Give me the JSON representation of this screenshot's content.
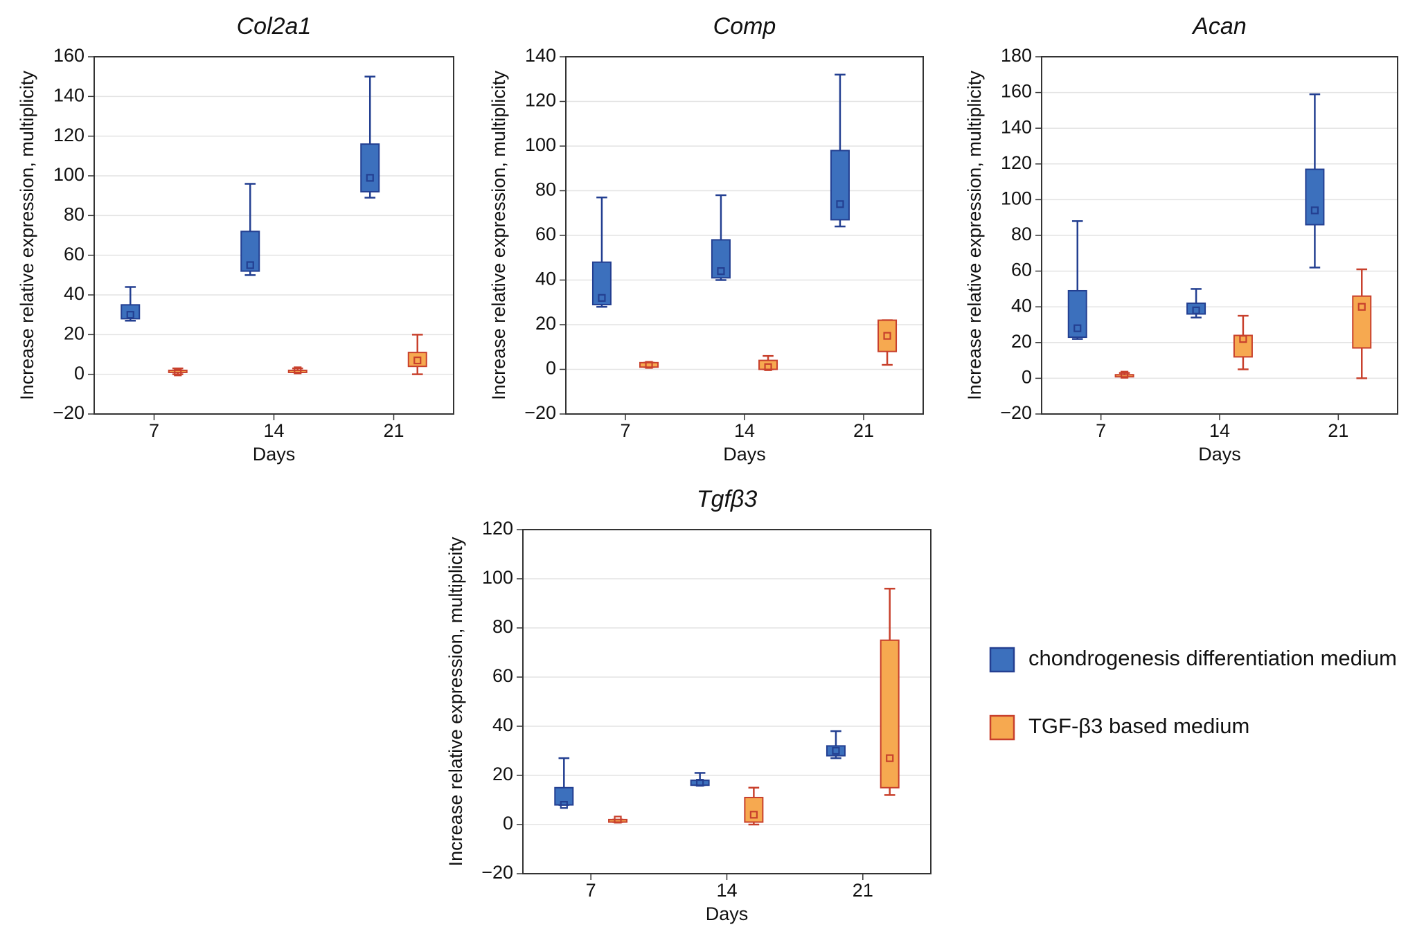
{
  "legend": [
    {
      "name": "chondrogenesis differentiation medium",
      "color": "#3c70bd",
      "edge": "#233f91"
    },
    {
      "name": "TGF-β3 based medium",
      "color": "#f6a950",
      "edge": "#c8402c"
    }
  ],
  "chart_data": [
    {
      "type": "box",
      "title": "Col2a1",
      "x_label": "Days",
      "y_label": "Increase relative expression, multiplicity",
      "categories": [
        "7",
        "14",
        "21"
      ],
      "ylim": [
        -20,
        160
      ],
      "yticks": [
        {
          "value": -20,
          "label": "−20"
        },
        0,
        20,
        40,
        60,
        80,
        100,
        120,
        140,
        160
      ],
      "grid": true,
      "series": [
        {
          "min": [
            27,
            50,
            89
          ],
          "q1": [
            28,
            52,
            92
          ],
          "median": [
            30,
            55,
            99
          ],
          "q3": [
            35,
            72,
            116
          ],
          "max": [
            44,
            96,
            150
          ]
        },
        {
          "min": [
            0,
            1,
            0
          ],
          "q1": [
            1,
            1,
            4
          ],
          "median": [
            1,
            2,
            7
          ],
          "q3": [
            2,
            2,
            11
          ],
          "max": [
            3,
            3,
            20
          ]
        }
      ]
    },
    {
      "type": "box",
      "title": "Comp",
      "x_label": "Days",
      "y_label": "Increase relative expression, multiplicity",
      "categories": [
        "7",
        "14",
        "21"
      ],
      "ylim": [
        -20,
        140
      ],
      "yticks": [
        {
          "value": -20,
          "label": "−20"
        },
        0,
        20,
        40,
        60,
        80,
        100,
        120,
        140
      ],
      "grid": true,
      "series": [
        {
          "min": [
            28,
            40,
            64
          ],
          "q1": [
            29,
            41,
            67
          ],
          "median": [
            32,
            44,
            74
          ],
          "q3": [
            48,
            58,
            98
          ],
          "max": [
            77,
            78,
            132
          ]
        },
        {
          "min": [
            1,
            0,
            2
          ],
          "q1": [
            1,
            0,
            8
          ],
          "median": [
            2,
            1,
            15
          ],
          "q3": [
            3,
            4,
            22
          ],
          "max": [
            3,
            6,
            22
          ]
        }
      ]
    },
    {
      "type": "box",
      "title": "Acan",
      "x_label": "Days",
      "y_label": "Increase relative expression, multiplicity",
      "categories": [
        "7",
        "14",
        "21"
      ],
      "ylim": [
        -20,
        180
      ],
      "yticks": [
        {
          "value": -20,
          "label": "−20"
        },
        0,
        20,
        40,
        60,
        80,
        100,
        120,
        140,
        160,
        180
      ],
      "grid": true,
      "series": [
        {
          "min": [
            22,
            34,
            62
          ],
          "q1": [
            23,
            36,
            86
          ],
          "median": [
            28,
            38,
            94
          ],
          "q3": [
            49,
            42,
            117
          ],
          "max": [
            88,
            50,
            159
          ]
        },
        {
          "min": [
            1,
            5,
            0
          ],
          "q1": [
            1,
            12,
            17
          ],
          "median": [
            2,
            22,
            40
          ],
          "q3": [
            2,
            24,
            46
          ],
          "max": [
            3,
            35,
            61
          ]
        }
      ]
    },
    {
      "type": "box",
      "title": "Tgfβ3",
      "x_label": "Days",
      "y_label": "Increase relative expression, multiplicity",
      "categories": [
        "7",
        "14",
        "21"
      ],
      "ylim": [
        -20,
        120
      ],
      "yticks": [
        {
          "value": -20,
          "label": "−20"
        },
        0,
        20,
        40,
        60,
        80,
        100,
        120
      ],
      "grid": true,
      "series": [
        {
          "min": [
            8,
            16,
            27
          ],
          "q1": [
            8,
            16,
            28
          ],
          "median": [
            8,
            17,
            30
          ],
          "q3": [
            15,
            18,
            32
          ],
          "max": [
            27,
            21,
            38
          ]
        },
        {
          "min": [
            1,
            0,
            12
          ],
          "q1": [
            1,
            1,
            15
          ],
          "median": [
            2,
            4,
            27
          ],
          "q3": [
            2,
            11,
            75
          ],
          "max": [
            2,
            15,
            96
          ]
        }
      ]
    }
  ]
}
